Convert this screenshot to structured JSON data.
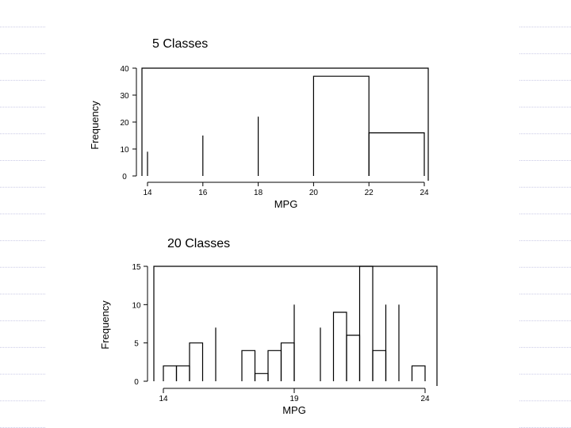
{
  "slide": {
    "background": "#ffffff",
    "rule_color": "#c9c9e6"
  },
  "chart_data": [
    {
      "type": "bar",
      "title": "5 Classes",
      "xlabel": "MPG",
      "ylabel": "Frequency",
      "xlim": [
        14,
        24
      ],
      "ylim": [
        0,
        40
      ],
      "xticks": [
        14,
        16,
        18,
        20,
        22,
        24
      ],
      "yticks": [
        0,
        10,
        20,
        30,
        40
      ],
      "bins": [
        {
          "x0": 14,
          "x1": 14,
          "value": 9
        },
        {
          "x0": 16,
          "x1": 16,
          "value": 15
        },
        {
          "x0": 18,
          "x1": 18,
          "value": 22
        },
        {
          "x0": 20,
          "x1": 22,
          "value": 37
        },
        {
          "x0": 22,
          "x1": 24,
          "value": 16
        }
      ],
      "frame_top": 40
    },
    {
      "type": "bar",
      "title": "20 Classes",
      "xlabel": "MPG",
      "ylabel": "Frequency",
      "xlim": [
        14,
        24
      ],
      "ylim": [
        0,
        15
      ],
      "xticks": [
        14,
        19,
        24
      ],
      "yticks": [
        0,
        5,
        10,
        15
      ],
      "bins": [
        {
          "x0": 14,
          "x1": 14.5,
          "value": 2
        },
        {
          "x0": 14.5,
          "x1": 15,
          "value": 2
        },
        {
          "x0": 15,
          "x1": 15.5,
          "value": 5
        },
        {
          "x0": 16,
          "x1": 16,
          "value": 7
        },
        {
          "x0": 17,
          "x1": 17.5,
          "value": 4
        },
        {
          "x0": 17.5,
          "x1": 18,
          "value": 1
        },
        {
          "x0": 18,
          "x1": 18.5,
          "value": 4
        },
        {
          "x0": 18.5,
          "x1": 19,
          "value": 5
        },
        {
          "x0": 19,
          "x1": 19,
          "value": 10
        },
        {
          "x0": 20,
          "x1": 20,
          "value": 7
        },
        {
          "x0": 20.5,
          "x1": 21,
          "value": 9
        },
        {
          "x0": 21,
          "x1": 21.5,
          "value": 6
        },
        {
          "x0": 21.5,
          "x1": 22,
          "value": 15
        },
        {
          "x0": 22,
          "x1": 22.5,
          "value": 4
        },
        {
          "x0": 22.5,
          "x1": 22.5,
          "value": 10
        },
        {
          "x0": 23,
          "x1": 23,
          "value": 10
        },
        {
          "x0": 23.5,
          "x1": 24,
          "value": 2
        }
      ],
      "frame_top": 15
    }
  ]
}
